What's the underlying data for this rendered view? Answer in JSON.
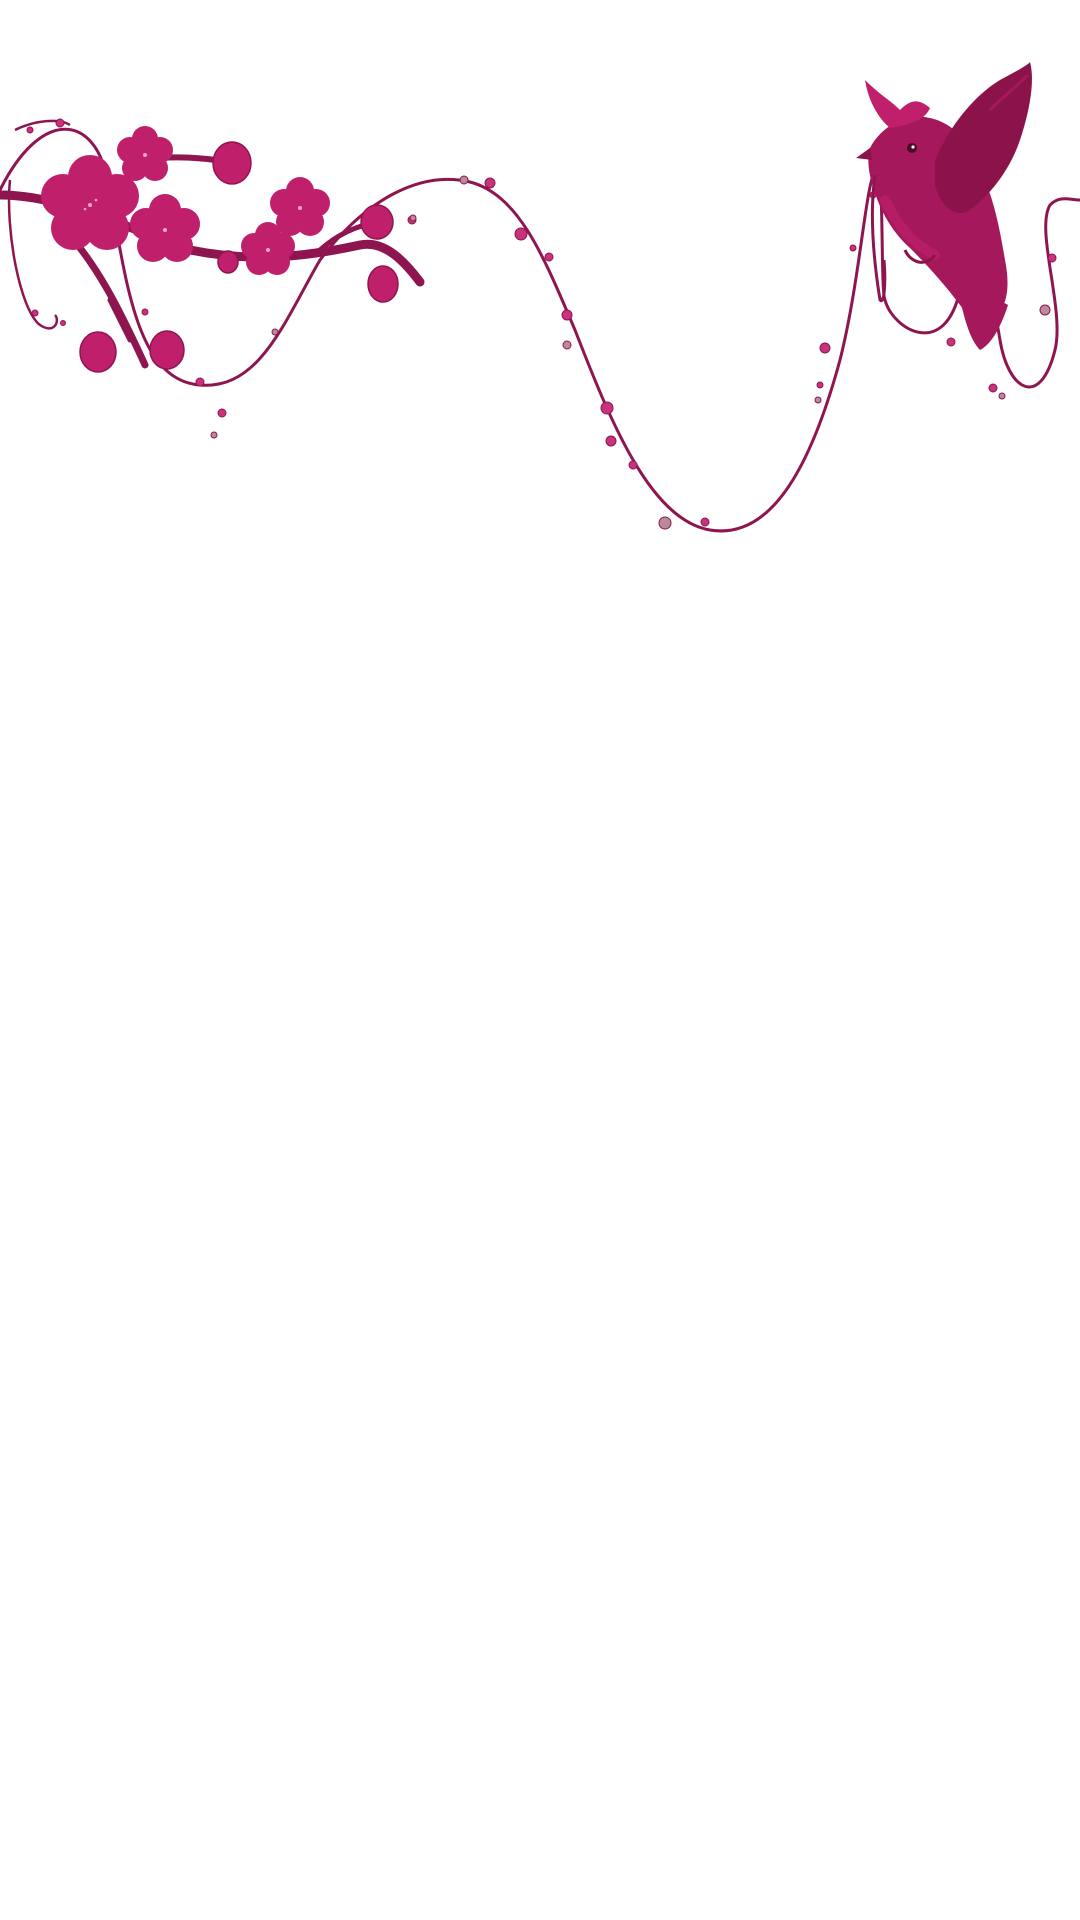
{
  "background_color": "#ffffff",
  "artwork": {
    "description_name": "plum-blossom-branch-and-bird-wallpaper",
    "colors": {
      "vine": "#8f1550",
      "blossom": "#c01f6c",
      "blossom_dark": "#a31a5c",
      "bird": "#a5195c",
      "bird_wing": "#8c1349",
      "bead": "#c8337c",
      "bead_pale": "#b88a9a",
      "stamen": "#f3a7c8"
    },
    "icons": [
      "blossom-icon",
      "bird-icon",
      "bead-icon"
    ]
  }
}
